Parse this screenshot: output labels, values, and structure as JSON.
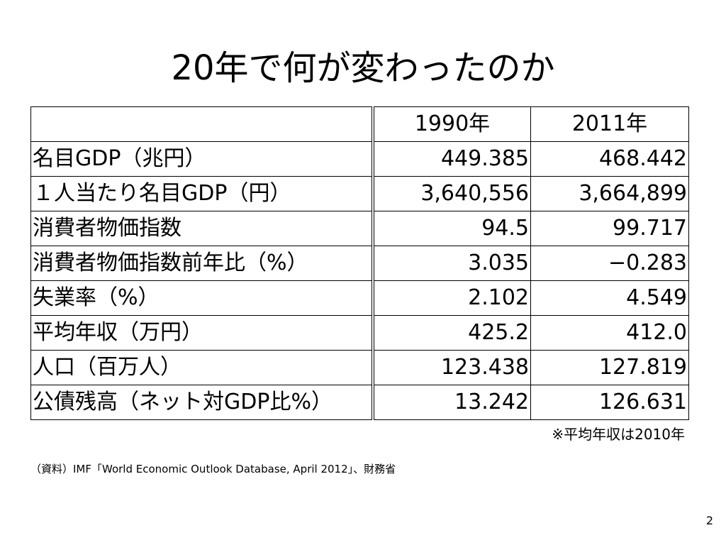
{
  "title": "20年で何が変わったのか",
  "table": {
    "header": [
      "",
      "1990年",
      "2011年"
    ],
    "rows": [
      [
        "名目GDP（兆円）",
        "449.385",
        "468.442"
      ],
      [
        "１人当たり名目GDP（円）",
        "3,640,556",
        "3,664,899"
      ],
      [
        "消費者物価指数",
        "94.5",
        "99.717"
      ],
      [
        "消費者物価指数前年比（%）",
        "3.035",
        "−0.283"
      ],
      [
        "失業率（%）",
        "2.102",
        "4.549"
      ],
      [
        "平均年収（万円）",
        "425.2",
        "412.0"
      ],
      [
        "人口（百万人）",
        "123.438",
        "127.819"
      ],
      [
        "公債残高（ネット対GDP比%）",
        "13.242",
        "126.631"
      ]
    ]
  },
  "note": "※平均年収は2010年",
  "source": "（資料）IMF「World Economic Outlook Database, April 2012」、財務省",
  "page_number": "2"
}
